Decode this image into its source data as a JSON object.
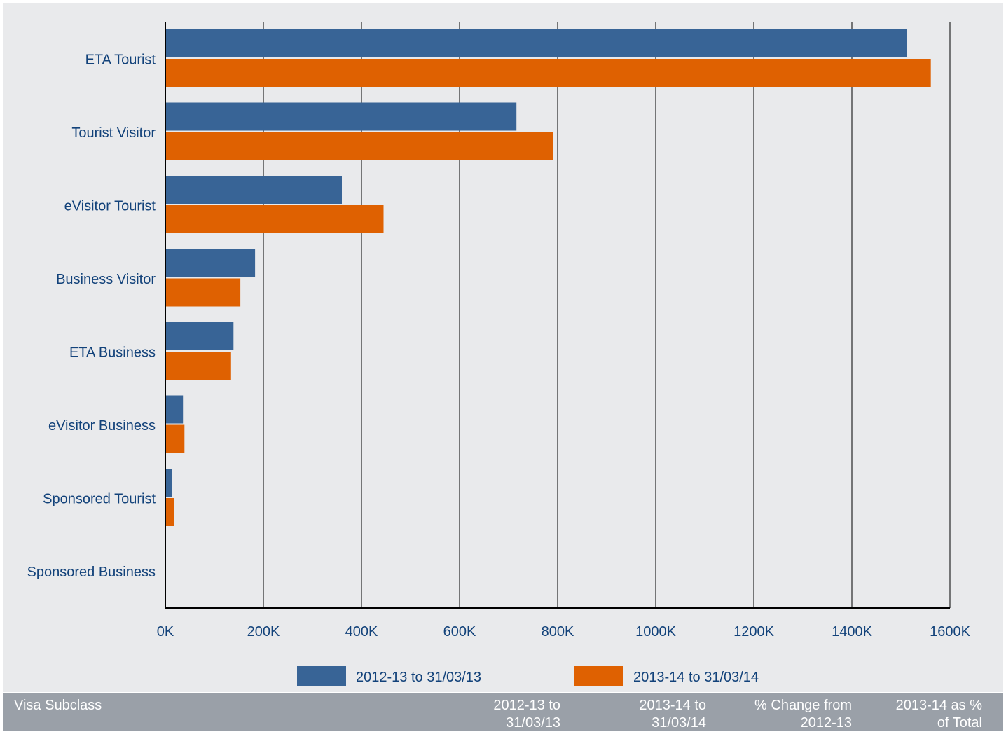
{
  "chart_data": {
    "type": "bar",
    "orientation": "horizontal",
    "categories": [
      "ETA Tourist",
      "Tourist Visitor",
      "eVisitor Tourist",
      "Business Visitor",
      "ETA Business",
      "eVisitor Business",
      "Sponsored Tourist",
      "Sponsored Business"
    ],
    "series": [
      {
        "name": "2012-13 to 31/03/13",
        "color": "#386496",
        "values": [
          1512000,
          716000,
          360000,
          183000,
          139000,
          36000,
          14000,
          1000
        ]
      },
      {
        "name": "2013-14 to 31/03/14",
        "color": "#df6101",
        "values": [
          1561000,
          790000,
          445000,
          153000,
          134000,
          39000,
          18000,
          1000
        ]
      }
    ],
    "xlim": [
      0,
      1600000
    ],
    "xticks": [
      "0K",
      "200K",
      "400K",
      "600K",
      "800K",
      "1000K",
      "1200K",
      "1400K",
      "1600K"
    ],
    "grid": "vertical",
    "legend_position": "bottom"
  },
  "table_header": {
    "col1": "Visa Subclass",
    "col2": [
      "2012-13 to",
      "31/03/13"
    ],
    "col3": [
      "2013-14 to",
      "31/03/14"
    ],
    "col4": [
      "% Change from",
      "2012-13"
    ],
    "col5": [
      "2013-14 as %",
      "of Total"
    ]
  },
  "colors": {
    "label_text": "#12427a",
    "panel_bg": "#e9eaec",
    "header_bg": "#9aa0a8"
  }
}
